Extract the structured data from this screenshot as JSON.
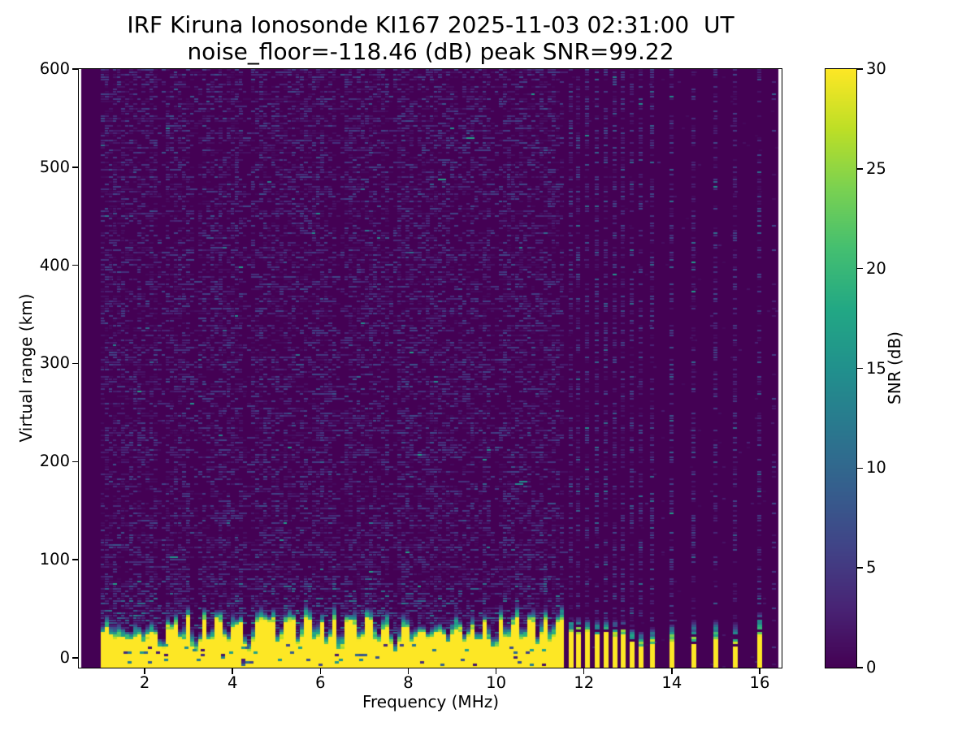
{
  "chart_data": {
    "type": "heatmap",
    "title": "IRF Kiruna Ionosonde KI167 2025-11-03 02:31:00  UT",
    "subtitle": "noise_floor=-118.46 (dB) peak SNR=99.22",
    "xlabel": "Frequency (MHz)",
    "ylabel": "Virtual range (km)",
    "xlim": [
      0.5,
      16.5
    ],
    "ylim": [
      -10,
      600
    ],
    "x_ticks": [
      2,
      4,
      6,
      8,
      10,
      12,
      14,
      16
    ],
    "y_ticks": [
      0,
      100,
      200,
      300,
      400,
      500,
      600
    ],
    "grid": false,
    "colorbar": {
      "label": "SNR (dB)",
      "ticks": [
        0,
        5,
        10,
        15,
        20,
        25,
        30
      ],
      "range": [
        0,
        30
      ],
      "colormap": "viridis",
      "position": "right"
    },
    "noise_floor_db": -118.46,
    "peak_snr_db": 99.22,
    "features": {
      "data_freq_range_mhz": [
        0.55,
        16.42
      ],
      "ground_clutter": {
        "f_start": 1.0,
        "f_end": 11.55,
        "top_km_min": 18,
        "top_km_max": 40,
        "cap_km_min": 7,
        "cap_km_max": 18,
        "snr_max_db": 30
      },
      "notch_freqs_deep_mhz": [
        2.4,
        3.15,
        4.35,
        6.45,
        7.7,
        9.95
      ],
      "notch_freqs_shallow_mhz": [
        1.3,
        1.65,
        2.0,
        2.85,
        3.5,
        3.9,
        5.05,
        5.5,
        5.9,
        6.15,
        6.9,
        7.3,
        8.1,
        8.5,
        8.9,
        9.3,
        9.6,
        10.25,
        10.6,
        10.95,
        11.25
      ],
      "discrete_soundings": [
        {
          "f": 11.7,
          "ytop": 27,
          "cap": 14,
          "dens": 1.0
        },
        {
          "f": 11.88,
          "ytop": 25,
          "cap": 17,
          "dens": 1.0
        },
        {
          "f": 12.08,
          "ytop": 26,
          "cap": 14,
          "dens": 1.0
        },
        {
          "f": 12.3,
          "ytop": 24,
          "cap": 16,
          "dens": 1.0
        },
        {
          "f": 12.5,
          "ytop": 26,
          "cap": 13,
          "dens": 1.0
        },
        {
          "f": 12.7,
          "ytop": 22,
          "cap": 17,
          "dens": 1.0
        },
        {
          "f": 12.9,
          "ytop": 25,
          "cap": 13,
          "dens": 1.0
        },
        {
          "f": 13.1,
          "ytop": 17,
          "cap": 16,
          "dens": 0.95
        },
        {
          "f": 13.3,
          "ytop": 12,
          "cap": 15,
          "dens": 0.9
        },
        {
          "f": 13.55,
          "ytop": 14,
          "cap": 18,
          "dens": 0.9
        },
        {
          "f": 14.0,
          "ytop": 16,
          "cap": 20,
          "dens": 0.9
        },
        {
          "f": 14.5,
          "ytop": 13,
          "cap": 26,
          "dens": 0.9
        },
        {
          "f": 15.0,
          "ytop": 17,
          "cap": 22,
          "dens": 0.85
        },
        {
          "f": 15.45,
          "ytop": 12,
          "cap": 24,
          "dens": 0.85
        },
        {
          "f": 16.0,
          "ytop": 21,
          "cap": 28,
          "dens": 0.85
        },
        {
          "f": 16.33,
          "ytop": -99,
          "cap": 0,
          "dens": 0.3
        }
      ],
      "background_color": "#440154",
      "clutter_color": "#fde725"
    }
  }
}
